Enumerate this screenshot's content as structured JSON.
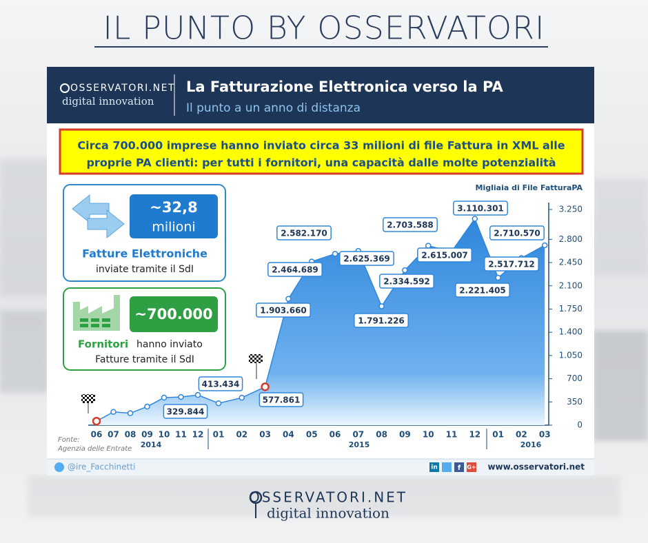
{
  "page_title": "IL PUNTO BY OSSERVATORI",
  "header": {
    "logo_top": "OSSERVATORI.NET",
    "logo_bottom": "digital innovation",
    "title": "La Fatturazione Elettronica verso la PA",
    "subtitle": "Il punto a un anno di distanza"
  },
  "highlight": [
    "Circa 700.000 imprese hanno inviato circa 33 milioni di file Fattura in XML alle",
    "proprie PA clienti: per tutti i fornitori, una capacità dalle molte potenzialità"
  ],
  "stats": [
    {
      "value": "~32,8",
      "unit": "milioni",
      "label": "Fatture Elettroniche",
      "sublabel": "inviate tramite il SdI"
    },
    {
      "value": "~700.000",
      "label": "Fornitori",
      "label_rest": "hanno inviato",
      "sublabel": "Fatture tramite il SdI"
    }
  ],
  "chart_data": {
    "type": "area",
    "y_axis_title": "Migliaia di File FatturaPA",
    "categories": [
      "06",
      "07",
      "08",
      "09",
      "10",
      "11",
      "12",
      "01",
      "02",
      "03",
      "04",
      "05",
      "06",
      "07",
      "08",
      "09",
      "10",
      "11",
      "12",
      "01",
      "02",
      "03"
    ],
    "years": [
      "2014",
      "2015",
      "2016"
    ],
    "values": [
      60,
      200,
      180,
      280,
      415,
      425,
      455,
      329.844,
      413.434,
      577.861,
      1903.66,
      2464.689,
      2582.17,
      2625.369,
      1791.226,
      2334.592,
      2703.588,
      2615.007,
      3110.301,
      2221.405,
      2517.712,
      2710.57
    ],
    "value_labels": [
      null,
      null,
      null,
      null,
      null,
      null,
      null,
      "329.844",
      "413.434",
      "577.861",
      "1.903.660",
      "2.464.689",
      "2.582.170",
      "2.625.369",
      "1.791.226",
      "2.334.592",
      "2.703.588",
      "2.615.007",
      "3.110.301",
      "2.221.405",
      "2.517.712",
      "2.710.570"
    ],
    "color": "#2f86dc",
    "ylim": [
      0,
      3250
    ],
    "yticks": [
      0,
      350,
      700,
      {
        "value": 1050,
        "label": "1.050"
      },
      {
        "value": 1400,
        "label": "1.400"
      },
      {
        "value": 1750,
        "label": "1.750"
      },
      {
        "value": 2100,
        "label": "2.100"
      },
      {
        "value": 2450,
        "label": "2.450"
      },
      {
        "value": 2800,
        "label": "2.800"
      },
      {
        "value": 3250,
        "label": "3.250"
      }
    ]
  },
  "source": [
    "Fonte:",
    "Agenzia delle Entrate"
  ],
  "footer": {
    "handle": "@ire_Facchinetti",
    "social": [
      "in",
      "f",
      "G+"
    ],
    "url": "www.osservatori.net"
  },
  "bottom_logo": {
    "top": "OSSERVATORI.NET",
    "bottom": "digital innovation"
  }
}
